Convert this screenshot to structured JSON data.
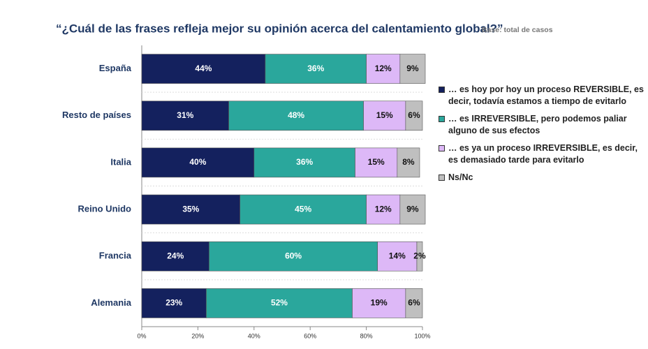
{
  "chart_data": {
    "type": "stacked_bar_horizontal",
    "title": "“¿Cuál de las frases refleja mejor su opinión acerca del calentamiento global?”",
    "subtitle": "Base: total de casos",
    "categories": [
      "España",
      "Resto de países",
      "Italia",
      "Reino Unido",
      "Francia",
      "Alemania"
    ],
    "series": [
      {
        "name": "… es hoy por hoy un proceso REVERSIBLE, es decir, todavía estamos a tiempo de evitarlo",
        "color": "#14215e",
        "values": [
          44,
          31,
          40,
          35,
          24,
          23
        ],
        "value_labels": [
          "44%",
          "31%",
          "40%",
          "35%",
          "24%",
          "23%"
        ]
      },
      {
        "name": "… es IRREVERSIBLE, pero podemos paliar alguno de sus efectos",
        "color": "#2aa79c",
        "values": [
          36,
          48,
          36,
          45,
          60,
          52
        ],
        "value_labels": [
          "36%",
          "48%",
          "36%",
          "45%",
          "60%",
          "52%"
        ]
      },
      {
        "name": "… es ya un proceso IRREVERSIBLE, es decir, es demasiado tarde para evitarlo",
        "color": "#ddb8f7",
        "values": [
          12,
          15,
          15,
          12,
          14,
          19
        ],
        "value_labels": [
          "12%",
          "15%",
          "15%",
          "12%",
          "14%",
          "19%"
        ]
      },
      {
        "name": "Ns/Nc",
        "color": "#bfbfbf",
        "values": [
          9,
          6,
          8,
          9,
          2,
          6
        ],
        "value_labels": [
          "9%",
          "6%",
          "8%",
          "9%",
          "2%",
          "6%"
        ]
      }
    ],
    "xlim": [
      0,
      100
    ],
    "xticks": [
      {
        "value": 0,
        "label": "0%"
      },
      {
        "value": 20,
        "label": "20%"
      },
      {
        "value": 40,
        "label": "40%"
      },
      {
        "value": 60,
        "label": "60%"
      },
      {
        "value": 80,
        "label": "80%"
      },
      {
        "value": 100,
        "label": "100%"
      }
    ],
    "legend": "right"
  }
}
